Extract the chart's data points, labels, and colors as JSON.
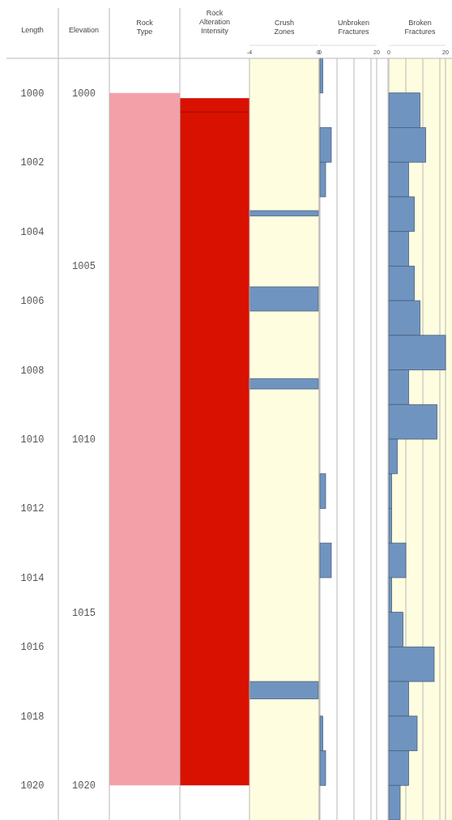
{
  "chart_data": [
    {
      "type": "bar",
      "title": "Rock Type",
      "ylabel": "Length",
      "categories": [
        null
      ],
      "base": [
        1000
      ],
      "values": [
        20
      ],
      "color": "#f4a0a8",
      "ylim": [
        1021,
        999
      ],
      "yticks": [
        1000,
        1002,
        1004,
        1006,
        1008,
        1010,
        1012,
        1014,
        1016,
        1018,
        1020
      ],
      "tick_labels": "y"
    },
    {
      "type": "bar",
      "title": "Rock Alteration Intensity",
      "ylabel": "Elevation",
      "categories": [
        null
      ],
      "base": [
        1000.15
      ],
      "values": [
        19.85
      ],
      "color": "#d91100",
      "ref_lines": [
        {
          "axis": "y",
          "value": 1000.55,
          "color": "#a00c00"
        }
      ],
      "ylim": [
        1021,
        999
      ],
      "yticks": [
        1000,
        1005,
        1010,
        1015,
        1020
      ],
      "tick_labels": "y"
    },
    {
      "type": "histogram",
      "orientation": "horizontal",
      "title": "Crush Zones",
      "color": "#7094c0",
      "bins": [
        1003.4,
        1003.55,
        1005.6,
        1006.3,
        1008.25,
        1008.55,
        1017,
        1017.5
      ],
      "values": [
        -4,
        0,
        -4,
        0,
        -4,
        0,
        -4
      ],
      "xlim": [
        -4,
        0
      ],
      "xticks": [
        -4,
        0
      ],
      "ylim": [
        1021,
        999
      ],
      "tick_labels": "x"
    },
    {
      "type": "histogram",
      "orientation": "horizontal",
      "title": "Unbroken Fractures",
      "color": "#7094c0",
      "bins": [
        999,
        1000,
        1001,
        1002,
        1003,
        1004,
        1005,
        1006,
        1007,
        1008,
        1009,
        1010,
        1011,
        1012,
        1013,
        1014,
        1015,
        1016,
        1017,
        1018,
        1019,
        1020
      ],
      "values": [
        1,
        0,
        4,
        2,
        0,
        0,
        0,
        0,
        0,
        0,
        0,
        0,
        2,
        0,
        4,
        0,
        0,
        0,
        0,
        1,
        2
      ],
      "xlim": [
        0,
        20
      ],
      "xticks": [
        0,
        {
          "value": 6,
          "label": null
        },
        {
          "value": 12,
          "label": null
        },
        {
          "value": 18,
          "label": null
        },
        20
      ],
      "grid": "x",
      "ylim": [
        1021,
        999
      ],
      "tick_labels": "x"
    },
    {
      "type": "histogram",
      "orientation": "horizontal",
      "title": "Broken Fractures",
      "color": "#7094c0",
      "bins": [
        1000,
        1001,
        1002,
        1003,
        1004,
        1005,
        1006,
        1007,
        1008,
        1009,
        1010,
        1011,
        1012,
        1013,
        1014,
        1015,
        1016,
        1017,
        1018,
        1019,
        1020,
        1021
      ],
      "values": [
        11,
        13,
        7,
        9,
        7,
        9,
        11,
        20,
        7,
        17,
        3,
        1,
        1,
        6,
        1,
        5,
        16,
        7,
        10,
        7,
        4
      ],
      "xlim": [
        0,
        20
      ],
      "xticks": [
        0,
        {
          "value": 6,
          "label": null
        },
        {
          "value": 12,
          "label": null
        },
        {
          "value": 18,
          "label": null
        },
        20
      ],
      "grid": "x",
      "ylim": [
        1021,
        999
      ],
      "tick_labels": "x"
    }
  ]
}
